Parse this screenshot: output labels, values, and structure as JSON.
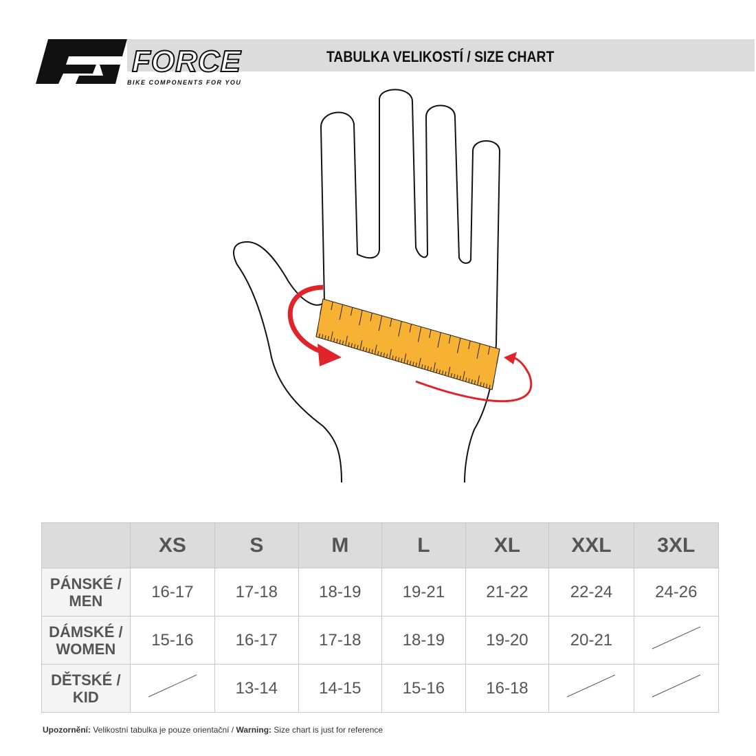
{
  "header": {
    "title": "TABULKA VELIKOSTÍ / SIZE CHART",
    "brand": "FORCE",
    "tagline": "BIKE COMPONENTS FOR YOU"
  },
  "colors": {
    "ruler": "#f7b234",
    "arrow": "#e1242b",
    "band": "#dcdcdc",
    "text": "#555555"
  },
  "table": {
    "columns": [
      "XS",
      "S",
      "M",
      "L",
      "XL",
      "XXL",
      "3XL"
    ],
    "rows": [
      {
        "label": "PÁNSKÉ / MEN",
        "values": [
          "16-17",
          "17-18",
          "18-19",
          "19-21",
          "21-22",
          "22-24",
          "24-26"
        ]
      },
      {
        "label": "DÁMSKÉ / WOMEN",
        "values": [
          "15-16",
          "16-17",
          "17-18",
          "18-19",
          "19-20",
          "20-21",
          null
        ]
      },
      {
        "label": "DĚTSKÉ / KID",
        "values": [
          null,
          "13-14",
          "14-15",
          "15-16",
          "16-18",
          null,
          null
        ]
      }
    ]
  },
  "note": {
    "label1": "Upozornění:",
    "text1": " Velikostní tabulka je pouze orientační / ",
    "label2": "Warning:",
    "text2": " Size chart is just for reference"
  }
}
